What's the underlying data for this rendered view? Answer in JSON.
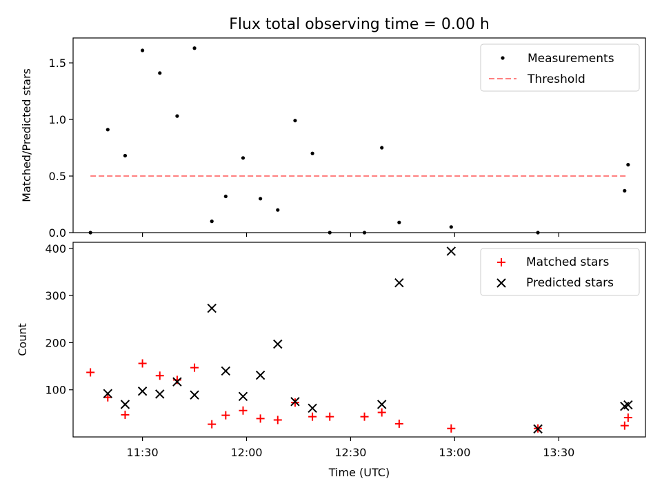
{
  "title": "Flux total observing time = 0.00 h",
  "xlabel": "Time (UTC)",
  "x_ticks": [
    "11:30",
    "12:00",
    "12:30",
    "13:00",
    "13:30"
  ],
  "colors": {
    "matched": "#ff0000",
    "predicted": "#000000",
    "measurements": "#000000",
    "threshold": "#ff7f7f"
  },
  "chart_data": [
    {
      "type": "scatter",
      "panel": "top",
      "ylabel": "Matched/Predicted stars",
      "ylim": [
        0,
        1.72
      ],
      "y_ticks": [
        "0.0",
        "0.5",
        "1.0",
        "1.5"
      ],
      "legend": {
        "position": "top-right",
        "entries": [
          "Measurements",
          "Threshold"
        ]
      },
      "series": [
        {
          "name": "Measurements",
          "x": [
            "11:15",
            "11:20",
            "11:25",
            "11:30",
            "11:35",
            "11:40",
            "11:45",
            "11:50",
            "11:54",
            "11:59",
            "12:04",
            "12:09",
            "12:14",
            "12:19",
            "12:24",
            "12:34",
            "12:39",
            "12:44",
            "12:59",
            "13:24",
            "13:49",
            "13:50"
          ],
          "values": [
            0.0,
            0.91,
            0.68,
            1.61,
            1.41,
            1.03,
            1.63,
            0.1,
            0.32,
            0.66,
            0.3,
            0.2,
            0.99,
            0.7,
            0.0,
            0.0,
            0.75,
            0.09,
            0.05,
            0.0,
            0.37,
            0.6
          ]
        },
        {
          "name": "Threshold",
          "x": [
            "11:15",
            "13:50"
          ],
          "values": [
            0.5,
            0.5
          ]
        }
      ]
    },
    {
      "type": "scatter",
      "panel": "bottom",
      "ylabel": "Count",
      "ylim": [
        0,
        413
      ],
      "y_ticks": [
        "100",
        "200",
        "300",
        "400"
      ],
      "legend": {
        "position": "top-right",
        "entries": [
          "Matched stars",
          "Predicted stars"
        ]
      },
      "series": [
        {
          "name": "Matched stars",
          "x": [
            "11:15",
            "11:20",
            "11:25",
            "11:30",
            "11:35",
            "11:40",
            "11:45",
            "11:50",
            "11:54",
            "11:59",
            "12:04",
            "12:09",
            "12:14",
            "12:19",
            "12:24",
            "12:34",
            "12:39",
            "12:44",
            "12:59",
            "13:24",
            "13:49",
            "13:50"
          ],
          "values": [
            137,
            84,
            47,
            156,
            130,
            121,
            147,
            27,
            46,
            56,
            39,
            36,
            73,
            43,
            43,
            43,
            52,
            28,
            18,
            18,
            24,
            41
          ]
        },
        {
          "name": "Predicted stars",
          "x": [
            "11:20",
            "11:25",
            "11:30",
            "11:35",
            "11:40",
            "11:45",
            "11:50",
            "11:54",
            "11:59",
            "12:04",
            "12:09",
            "12:14",
            "12:19",
            "12:39",
            "12:44",
            "12:59",
            "13:24",
            "13:49",
            "13:50"
          ],
          "values": [
            92,
            69,
            97,
            91,
            117,
            89,
            273,
            140,
            86,
            131,
            197,
            75,
            61,
            69,
            327,
            394,
            17,
            65,
            68
          ]
        }
      ]
    }
  ]
}
